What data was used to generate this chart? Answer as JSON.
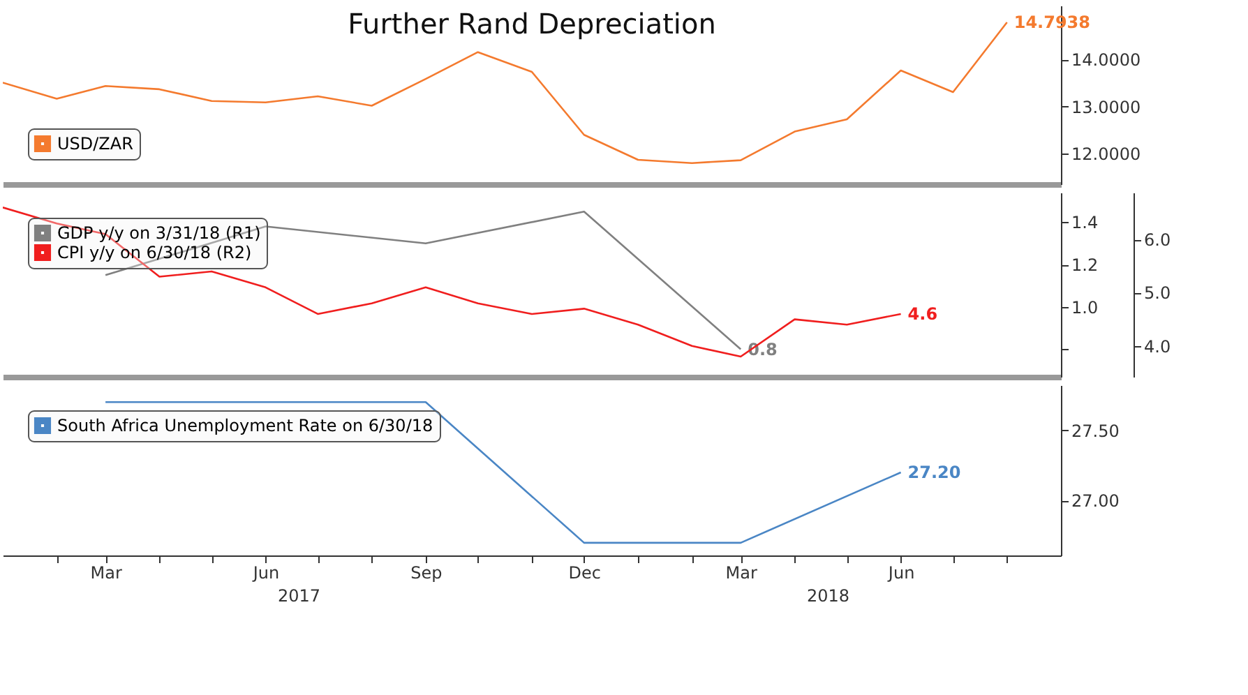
{
  "chart_data": [
    {
      "type": "line",
      "title": "Further Rand Depreciation",
      "legend": "bottom left",
      "grid": false,
      "tick_labels": "y",
      "x": [
        "2017-01",
        "2017-02",
        "2017-03",
        "2017-04",
        "2017-05",
        "2017-06",
        "2017-07",
        "2017-08",
        "2017-09",
        "2017-10",
        "2017-11",
        "2017-12",
        "2018-01",
        "2018-02",
        "2018-03",
        "2018-04",
        "2018-05",
        "2018-06",
        "2018-07",
        "2018-08"
      ],
      "xlim": [
        "2017-01",
        "2018-09"
      ],
      "ylim": [
        11.35,
        15.15
      ],
      "yticks": [
        {
          "value": 12,
          "label": "12.0000"
        },
        {
          "value": 13,
          "label": "13.0000"
        },
        {
          "value": 14,
          "label": "14.0000"
        }
      ],
      "series": [
        {
          "name": "USD/ZAR",
          "color": "#f47a2e",
          "values": [
            13.51,
            13.17,
            13.44,
            13.37,
            13.12,
            13.09,
            13.22,
            13.02,
            13.59,
            14.16,
            13.74,
            12.4,
            11.87,
            11.8,
            11.86,
            12.47,
            12.73,
            13.77,
            13.31,
            14.7938
          ],
          "value_labels": [
            null,
            null,
            null,
            null,
            null,
            null,
            null,
            null,
            null,
            null,
            null,
            null,
            null,
            null,
            null,
            null,
            null,
            null,
            null,
            "14.7938"
          ]
        }
      ]
    },
    {
      "type": "line",
      "legend": "top left",
      "grid": false,
      "tick_labels": "y",
      "xlim": [
        "2017-01",
        "2018-09"
      ],
      "ylim": [
        0.67,
        1.54
      ],
      "yticks": [
        {
          "value": 0.8,
          "label": null
        },
        {
          "value": 1.0,
          "label": "1.0"
        },
        {
          "value": 1.2,
          "label": "1.2"
        },
        {
          "value": 1.4,
          "label": "1.4"
        }
      ],
      "y2lim": [
        3.42,
        6.88
      ],
      "y2ticks": [
        {
          "value": 4,
          "label": "4.0"
        },
        {
          "value": 5,
          "label": "5.0"
        },
        {
          "value": 6,
          "label": "6.0"
        }
      ],
      "series": [
        {
          "name": "GDP y/y on 3/31/18 (R1)",
          "color": "#808080",
          "x": [
            "2017-03",
            "2017-06",
            "2017-09",
            "2017-12",
            "2018-03"
          ],
          "values": [
            1.15,
            1.38,
            1.3,
            1.45,
            0.8
          ],
          "value_labels": [
            null,
            null,
            null,
            null,
            "0.8"
          ]
        },
        {
          "name": "CPI y/y on 6/30/18 (R2)",
          "color": "#f01e1e",
          "axis": "y2",
          "x": [
            "2017-01",
            "2017-02",
            "2017-03",
            "2017-04",
            "2017-05",
            "2017-06",
            "2017-07",
            "2017-08",
            "2017-09",
            "2017-10",
            "2017-11",
            "2017-12",
            "2018-01",
            "2018-02",
            "2018-03",
            "2018-04",
            "2018-05",
            "2018-06"
          ],
          "values": [
            6.6,
            6.3,
            6.1,
            5.3,
            5.4,
            5.1,
            4.6,
            4.8,
            5.1,
            4.8,
            4.6,
            4.7,
            4.4,
            4.0,
            3.8,
            4.5,
            4.4,
            4.6
          ],
          "value_labels": [
            null,
            null,
            null,
            null,
            null,
            null,
            null,
            null,
            null,
            null,
            null,
            null,
            null,
            null,
            null,
            null,
            null,
            "4.6"
          ]
        }
      ]
    },
    {
      "type": "line",
      "legend": "top left",
      "grid": false,
      "x": [
        "2017-03",
        "2017-06",
        "2017-09",
        "2017-12",
        "2018-03",
        "2018-06"
      ],
      "xlim": [
        "2017-01",
        "2018-09"
      ],
      "xticks": [
        {
          "value": "2017-02",
          "label": null
        },
        {
          "value": "2017-03",
          "label": "Mar"
        },
        {
          "value": "2017-04",
          "label": null
        },
        {
          "value": "2017-05",
          "label": null
        },
        {
          "value": "2017-06",
          "label": "Jun"
        },
        {
          "value": "2017-07",
          "label": null
        },
        {
          "value": "2017-08",
          "label": null
        },
        {
          "value": "2017-09",
          "label": "Sep"
        },
        {
          "value": "2017-10",
          "label": null
        },
        {
          "value": "2017-11",
          "label": null
        },
        {
          "value": "2017-12",
          "label": "Dec"
        },
        {
          "value": "2018-01",
          "label": null
        },
        {
          "value": "2018-02",
          "label": null
        },
        {
          "value": "2018-03",
          "label": "Mar"
        },
        {
          "value": "2018-04",
          "label": null
        },
        {
          "value": "2018-05",
          "label": null
        },
        {
          "value": "2018-06",
          "label": "Jun"
        },
        {
          "value": "2018-07",
          "label": null
        },
        {
          "value": "2018-08",
          "label": null
        }
      ],
      "ylim": [
        26.61,
        27.82
      ],
      "yticks": [
        {
          "value": 27,
          "label": "27.00"
        },
        {
          "value": 27.5,
          "label": "27.50"
        }
      ],
      "annotations": [
        "2017",
        "2018"
      ],
      "series": [
        {
          "name": "South Africa Unemployment Rate on 6/30/18",
          "color": "#4a86c5",
          "values": [
            27.7,
            27.7,
            27.7,
            26.7,
            26.7,
            27.2
          ],
          "value_labels": [
            null,
            null,
            null,
            null,
            null,
            "27.20"
          ]
        }
      ]
    }
  ]
}
